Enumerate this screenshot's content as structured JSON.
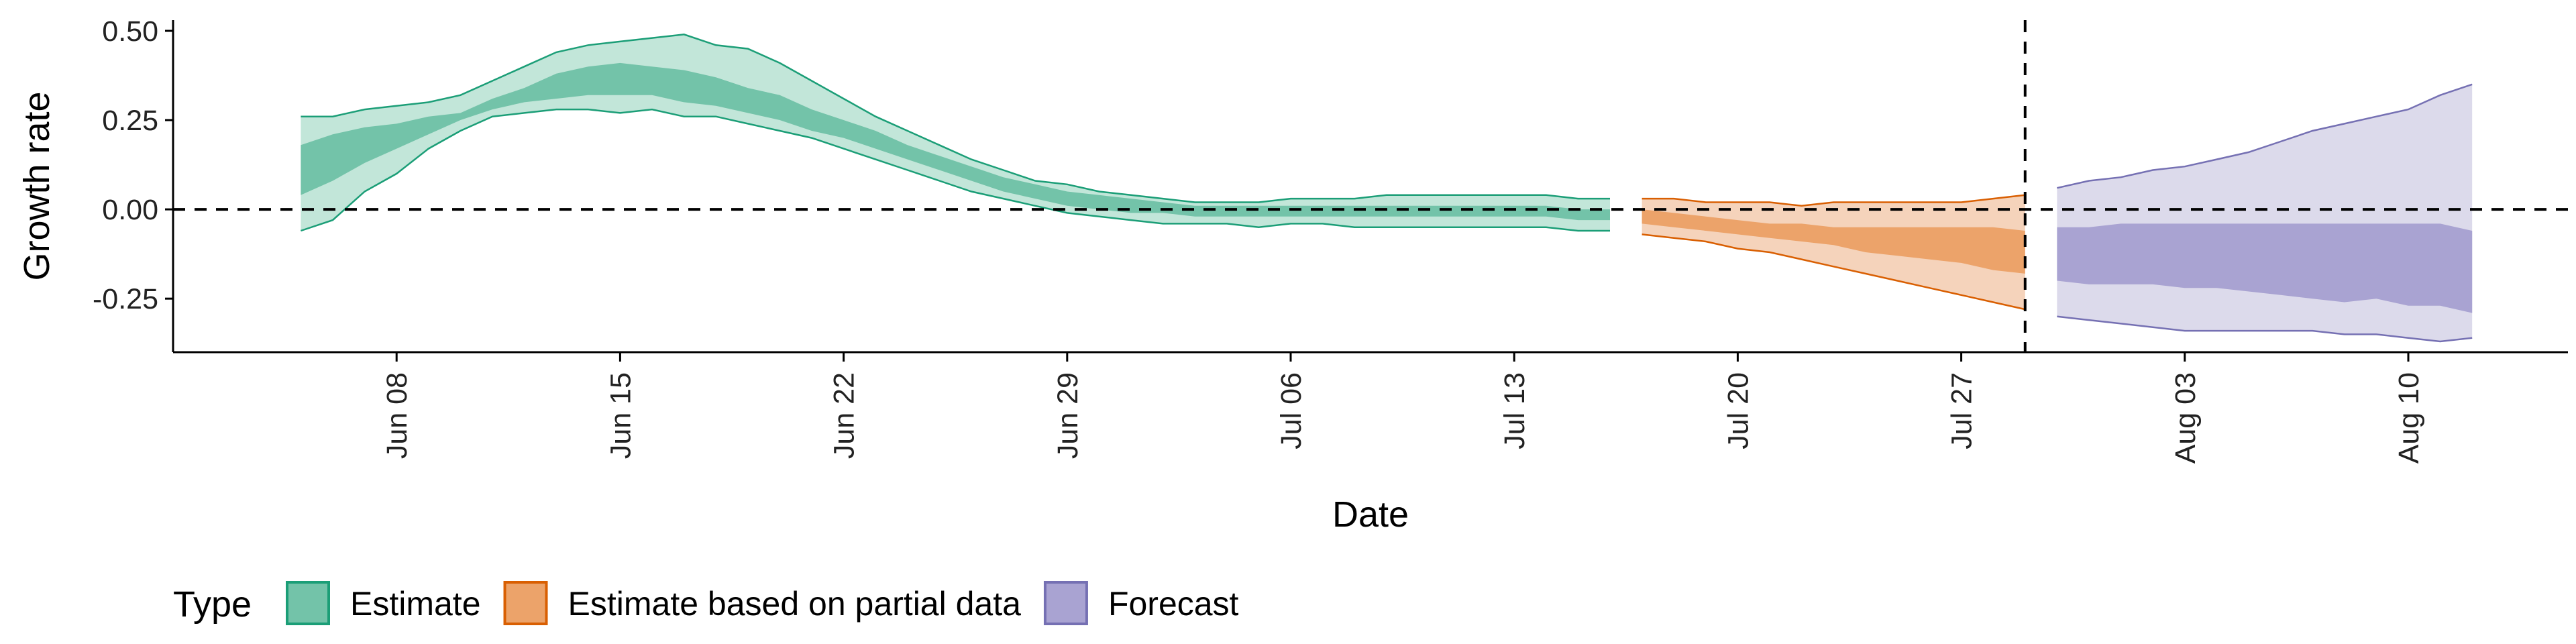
{
  "chart_data": {
    "type": "area",
    "xlabel": "Date",
    "ylabel": "Growth rate",
    "ylim": [
      -0.4,
      0.53
    ],
    "xlim": [
      "2020-06-01",
      "2020-08-15"
    ],
    "y_ticks": [
      {
        "value": 0.5,
        "label": "0.50"
      },
      {
        "value": 0.25,
        "label": "0.25"
      },
      {
        "value": 0.0,
        "label": "0.00"
      },
      {
        "value": -0.25,
        "label": "-0.25"
      }
    ],
    "x_ticks": [
      {
        "date": "2020-06-08",
        "label": "Jun 08"
      },
      {
        "date": "2020-06-15",
        "label": "Jun 15"
      },
      {
        "date": "2020-06-22",
        "label": "Jun 22"
      },
      {
        "date": "2020-06-29",
        "label": "Jun 29"
      },
      {
        "date": "2020-07-06",
        "label": "Jul 06"
      },
      {
        "date": "2020-07-13",
        "label": "Jul 13"
      },
      {
        "date": "2020-07-20",
        "label": "Jul 20"
      },
      {
        "date": "2020-07-27",
        "label": "Jul 27"
      },
      {
        "date": "2020-08-03",
        "label": "Aug 03"
      },
      {
        "date": "2020-08-10",
        "label": "Aug 10"
      }
    ],
    "hline_y": 0.0,
    "vline_x": "2020-07-29",
    "legend": {
      "title": "Type",
      "position": "bottom-left",
      "items": [
        {
          "label": "Estimate",
          "fill": "#73c3a9",
          "stroke": "#1b9e77"
        },
        {
          "label": "Estimate based on partial data",
          "fill": "#eca36a",
          "stroke": "#d95f02"
        },
        {
          "label": "Forecast",
          "fill": "#a9a3d2",
          "stroke": "#7570b3"
        }
      ]
    },
    "series": [
      {
        "name": "Estimate",
        "outer_fill": "#c2e6d9",
        "inner_fill": "#73c3a9",
        "stroke": "#1b9e77",
        "points": [
          {
            "date": "2020-06-05",
            "outer_low": -0.06,
            "inner_low": 0.04,
            "inner_high": 0.18,
            "outer_high": 0.26
          },
          {
            "date": "2020-06-06",
            "outer_low": -0.03,
            "inner_low": 0.08,
            "inner_high": 0.21,
            "outer_high": 0.26
          },
          {
            "date": "2020-06-07",
            "outer_low": 0.05,
            "inner_low": 0.13,
            "inner_high": 0.23,
            "outer_high": 0.28
          },
          {
            "date": "2020-06-08",
            "outer_low": 0.1,
            "inner_low": 0.17,
            "inner_high": 0.24,
            "outer_high": 0.29
          },
          {
            "date": "2020-06-09",
            "outer_low": 0.17,
            "inner_low": 0.21,
            "inner_high": 0.26,
            "outer_high": 0.3
          },
          {
            "date": "2020-06-10",
            "outer_low": 0.22,
            "inner_low": 0.25,
            "inner_high": 0.27,
            "outer_high": 0.32
          },
          {
            "date": "2020-06-11",
            "outer_low": 0.26,
            "inner_low": 0.28,
            "inner_high": 0.31,
            "outer_high": 0.36
          },
          {
            "date": "2020-06-12",
            "outer_low": 0.27,
            "inner_low": 0.3,
            "inner_high": 0.34,
            "outer_high": 0.4
          },
          {
            "date": "2020-06-13",
            "outer_low": 0.28,
            "inner_low": 0.31,
            "inner_high": 0.38,
            "outer_high": 0.44
          },
          {
            "date": "2020-06-14",
            "outer_low": 0.28,
            "inner_low": 0.32,
            "inner_high": 0.4,
            "outer_high": 0.46
          },
          {
            "date": "2020-06-15",
            "outer_low": 0.27,
            "inner_low": 0.32,
            "inner_high": 0.41,
            "outer_high": 0.47
          },
          {
            "date": "2020-06-16",
            "outer_low": 0.28,
            "inner_low": 0.32,
            "inner_high": 0.4,
            "outer_high": 0.48
          },
          {
            "date": "2020-06-17",
            "outer_low": 0.26,
            "inner_low": 0.3,
            "inner_high": 0.39,
            "outer_high": 0.49
          },
          {
            "date": "2020-06-18",
            "outer_low": 0.26,
            "inner_low": 0.29,
            "inner_high": 0.37,
            "outer_high": 0.46
          },
          {
            "date": "2020-06-19",
            "outer_low": 0.24,
            "inner_low": 0.27,
            "inner_high": 0.34,
            "outer_high": 0.45
          },
          {
            "date": "2020-06-20",
            "outer_low": 0.22,
            "inner_low": 0.25,
            "inner_high": 0.32,
            "outer_high": 0.41
          },
          {
            "date": "2020-06-21",
            "outer_low": 0.2,
            "inner_low": 0.22,
            "inner_high": 0.28,
            "outer_high": 0.36
          },
          {
            "date": "2020-06-22",
            "outer_low": 0.17,
            "inner_low": 0.2,
            "inner_high": 0.25,
            "outer_high": 0.31
          },
          {
            "date": "2020-06-23",
            "outer_low": 0.14,
            "inner_low": 0.17,
            "inner_high": 0.22,
            "outer_high": 0.26
          },
          {
            "date": "2020-06-24",
            "outer_low": 0.11,
            "inner_low": 0.14,
            "inner_high": 0.18,
            "outer_high": 0.22
          },
          {
            "date": "2020-06-25",
            "outer_low": 0.08,
            "inner_low": 0.11,
            "inner_high": 0.15,
            "outer_high": 0.18
          },
          {
            "date": "2020-06-26",
            "outer_low": 0.05,
            "inner_low": 0.08,
            "inner_high": 0.12,
            "outer_high": 0.14
          },
          {
            "date": "2020-06-27",
            "outer_low": 0.03,
            "inner_low": 0.05,
            "inner_high": 0.09,
            "outer_high": 0.11
          },
          {
            "date": "2020-06-28",
            "outer_low": 0.01,
            "inner_low": 0.03,
            "inner_high": 0.07,
            "outer_high": 0.08
          },
          {
            "date": "2020-06-29",
            "outer_low": -0.01,
            "inner_low": 0.01,
            "inner_high": 0.05,
            "outer_high": 0.07
          },
          {
            "date": "2020-06-30",
            "outer_low": -0.02,
            "inner_low": 0.0,
            "inner_high": 0.04,
            "outer_high": 0.05
          },
          {
            "date": "2020-07-01",
            "outer_low": -0.03,
            "inner_low": -0.01,
            "inner_high": 0.03,
            "outer_high": 0.04
          },
          {
            "date": "2020-07-02",
            "outer_low": -0.04,
            "inner_low": -0.01,
            "inner_high": 0.02,
            "outer_high": 0.03
          },
          {
            "date": "2020-07-03",
            "outer_low": -0.04,
            "inner_low": -0.02,
            "inner_high": 0.01,
            "outer_high": 0.02
          },
          {
            "date": "2020-07-04",
            "outer_low": -0.04,
            "inner_low": -0.02,
            "inner_high": 0.01,
            "outer_high": 0.02
          },
          {
            "date": "2020-07-05",
            "outer_low": -0.05,
            "inner_low": -0.02,
            "inner_high": 0.01,
            "outer_high": 0.02
          },
          {
            "date": "2020-07-06",
            "outer_low": -0.04,
            "inner_low": -0.02,
            "inner_high": 0.01,
            "outer_high": 0.03
          },
          {
            "date": "2020-07-07",
            "outer_low": -0.04,
            "inner_low": -0.02,
            "inner_high": 0.01,
            "outer_high": 0.03
          },
          {
            "date": "2020-07-08",
            "outer_low": -0.05,
            "inner_low": -0.02,
            "inner_high": 0.01,
            "outer_high": 0.03
          },
          {
            "date": "2020-07-09",
            "outer_low": -0.05,
            "inner_low": -0.02,
            "inner_high": 0.01,
            "outer_high": 0.04
          },
          {
            "date": "2020-07-10",
            "outer_low": -0.05,
            "inner_low": -0.02,
            "inner_high": 0.01,
            "outer_high": 0.04
          },
          {
            "date": "2020-07-11",
            "outer_low": -0.05,
            "inner_low": -0.02,
            "inner_high": 0.01,
            "outer_high": 0.04
          },
          {
            "date": "2020-07-12",
            "outer_low": -0.05,
            "inner_low": -0.02,
            "inner_high": 0.01,
            "outer_high": 0.04
          },
          {
            "date": "2020-07-13",
            "outer_low": -0.05,
            "inner_low": -0.02,
            "inner_high": 0.01,
            "outer_high": 0.04
          },
          {
            "date": "2020-07-14",
            "outer_low": -0.05,
            "inner_low": -0.02,
            "inner_high": 0.01,
            "outer_high": 0.04
          },
          {
            "date": "2020-07-15",
            "outer_low": -0.06,
            "inner_low": -0.03,
            "inner_high": 0.0,
            "outer_high": 0.03
          },
          {
            "date": "2020-07-16",
            "outer_low": -0.06,
            "inner_low": -0.03,
            "inner_high": 0.0,
            "outer_high": 0.03
          }
        ]
      },
      {
        "name": "Estimate based on partial data",
        "outer_fill": "#f5d3bb",
        "inner_fill": "#eca36a",
        "stroke": "#d95f02",
        "points": [
          {
            "date": "2020-07-17",
            "outer_low": -0.07,
            "inner_low": -0.04,
            "inner_high": 0.0,
            "outer_high": 0.03
          },
          {
            "date": "2020-07-18",
            "outer_low": -0.08,
            "inner_low": -0.05,
            "inner_high": -0.01,
            "outer_high": 0.03
          },
          {
            "date": "2020-07-19",
            "outer_low": -0.09,
            "inner_low": -0.06,
            "inner_high": -0.02,
            "outer_high": 0.02
          },
          {
            "date": "2020-07-20",
            "outer_low": -0.11,
            "inner_low": -0.07,
            "inner_high": -0.03,
            "outer_high": 0.02
          },
          {
            "date": "2020-07-21",
            "outer_low": -0.12,
            "inner_low": -0.08,
            "inner_high": -0.04,
            "outer_high": 0.02
          },
          {
            "date": "2020-07-22",
            "outer_low": -0.14,
            "inner_low": -0.09,
            "inner_high": -0.04,
            "outer_high": 0.01
          },
          {
            "date": "2020-07-23",
            "outer_low": -0.16,
            "inner_low": -0.1,
            "inner_high": -0.05,
            "outer_high": 0.02
          },
          {
            "date": "2020-07-24",
            "outer_low": -0.18,
            "inner_low": -0.12,
            "inner_high": -0.05,
            "outer_high": 0.02
          },
          {
            "date": "2020-07-25",
            "outer_low": -0.2,
            "inner_low": -0.13,
            "inner_high": -0.05,
            "outer_high": 0.02
          },
          {
            "date": "2020-07-26",
            "outer_low": -0.22,
            "inner_low": -0.14,
            "inner_high": -0.05,
            "outer_high": 0.02
          },
          {
            "date": "2020-07-27",
            "outer_low": -0.24,
            "inner_low": -0.15,
            "inner_high": -0.05,
            "outer_high": 0.02
          },
          {
            "date": "2020-07-28",
            "outer_low": -0.26,
            "inner_low": -0.17,
            "inner_high": -0.05,
            "outer_high": 0.03
          },
          {
            "date": "2020-07-29",
            "outer_low": -0.28,
            "inner_low": -0.18,
            "inner_high": -0.06,
            "outer_high": 0.04
          }
        ]
      },
      {
        "name": "Forecast",
        "outer_fill": "#dcdaeb",
        "inner_fill": "#a9a3d2",
        "stroke": "#7570b3",
        "points": [
          {
            "date": "2020-07-30",
            "outer_low": -0.3,
            "inner_low": -0.2,
            "inner_high": -0.05,
            "outer_high": 0.06
          },
          {
            "date": "2020-07-31",
            "outer_low": -0.31,
            "inner_low": -0.21,
            "inner_high": -0.05,
            "outer_high": 0.08
          },
          {
            "date": "2020-08-01",
            "outer_low": -0.32,
            "inner_low": -0.21,
            "inner_high": -0.04,
            "outer_high": 0.09
          },
          {
            "date": "2020-08-02",
            "outer_low": -0.33,
            "inner_low": -0.21,
            "inner_high": -0.04,
            "outer_high": 0.11
          },
          {
            "date": "2020-08-03",
            "outer_low": -0.34,
            "inner_low": -0.22,
            "inner_high": -0.04,
            "outer_high": 0.12
          },
          {
            "date": "2020-08-04",
            "outer_low": -0.34,
            "inner_low": -0.22,
            "inner_high": -0.04,
            "outer_high": 0.14
          },
          {
            "date": "2020-08-05",
            "outer_low": -0.34,
            "inner_low": -0.23,
            "inner_high": -0.04,
            "outer_high": 0.16
          },
          {
            "date": "2020-08-06",
            "outer_low": -0.34,
            "inner_low": -0.24,
            "inner_high": -0.04,
            "outer_high": 0.19
          },
          {
            "date": "2020-08-07",
            "outer_low": -0.34,
            "inner_low": -0.25,
            "inner_high": -0.04,
            "outer_high": 0.22
          },
          {
            "date": "2020-08-08",
            "outer_low": -0.35,
            "inner_low": -0.26,
            "inner_high": -0.04,
            "outer_high": 0.24
          },
          {
            "date": "2020-08-09",
            "outer_low": -0.35,
            "inner_low": -0.25,
            "inner_high": -0.04,
            "outer_high": 0.26
          },
          {
            "date": "2020-08-10",
            "outer_low": -0.36,
            "inner_low": -0.27,
            "inner_high": -0.04,
            "outer_high": 0.28
          },
          {
            "date": "2020-08-11",
            "outer_low": -0.37,
            "inner_low": -0.27,
            "inner_high": -0.04,
            "outer_high": 0.32
          },
          {
            "date": "2020-08-12",
            "outer_low": -0.36,
            "inner_low": -0.29,
            "inner_high": -0.06,
            "outer_high": 0.35
          }
        ]
      }
    ]
  }
}
